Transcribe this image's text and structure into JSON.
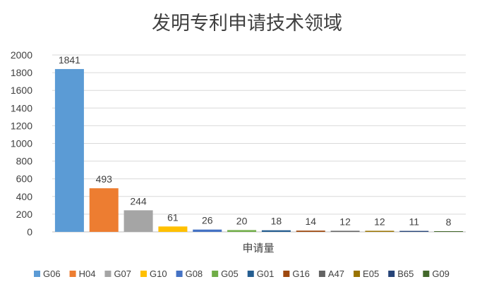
{
  "chart_data": {
    "type": "bar",
    "title": "发明专利申请技术领域",
    "xlabel": "申请量",
    "ylabel": "",
    "ylim": [
      0,
      2000
    ],
    "yticks": [
      0,
      200,
      400,
      600,
      800,
      1000,
      1200,
      1400,
      1600,
      1800,
      2000
    ],
    "grid": true,
    "legend_position": "bottom",
    "series": [
      {
        "name": "G06",
        "value": 1841,
        "color": "#5B9BD5"
      },
      {
        "name": "H04",
        "value": 493,
        "color": "#ED7D31"
      },
      {
        "name": "G07",
        "value": 244,
        "color": "#A5A5A5"
      },
      {
        "name": "G10",
        "value": 61,
        "color": "#FFC000"
      },
      {
        "name": "G08",
        "value": 26,
        "color": "#4472C4"
      },
      {
        "name": "G05",
        "value": 20,
        "color": "#70AD47"
      },
      {
        "name": "G01",
        "value": 18,
        "color": "#255E91"
      },
      {
        "name": "G16",
        "value": 14,
        "color": "#9E480E"
      },
      {
        "name": "A47",
        "value": 12,
        "color": "#636363"
      },
      {
        "name": "E05",
        "value": 12,
        "color": "#997300"
      },
      {
        "name": "B65",
        "value": 11,
        "color": "#264478"
      },
      {
        "name": "G09",
        "value": 8,
        "color": "#43682B"
      }
    ]
  }
}
